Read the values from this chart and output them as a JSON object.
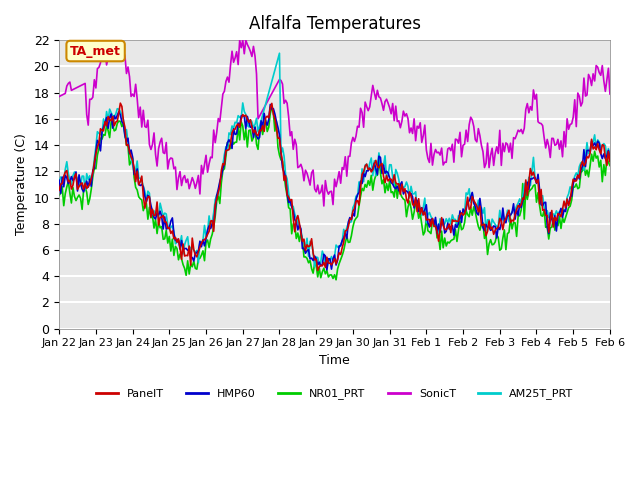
{
  "title": "Alfalfa Temperatures",
  "xlabel": "Time",
  "ylabel": "Temperature (C)",
  "ylim": [
    0,
    22
  ],
  "annotation": "TA_met",
  "bg_color": "#e8e8e8",
  "plot_bg_color": "#e8e8e8",
  "grid_color": "white",
  "series": {
    "PanelT": "#cc0000",
    "HMP60": "#0000cc",
    "NR01_PRT": "#00cc00",
    "SonicT": "#cc00cc",
    "AM25T_PRT": "#00cccc"
  },
  "xtick_labels": [
    "Jan 22",
    "Jan 23",
    "Jan 24",
    "Jan 25",
    "Jan 26",
    "Jan 27",
    "Jan 28",
    "Jan 29",
    "Jan 30",
    "Jan 31",
    "Feb 1",
    "Feb 2",
    "Feb 3",
    "Feb 4",
    "Feb 5",
    "Feb 6"
  ],
  "n_points": 361
}
